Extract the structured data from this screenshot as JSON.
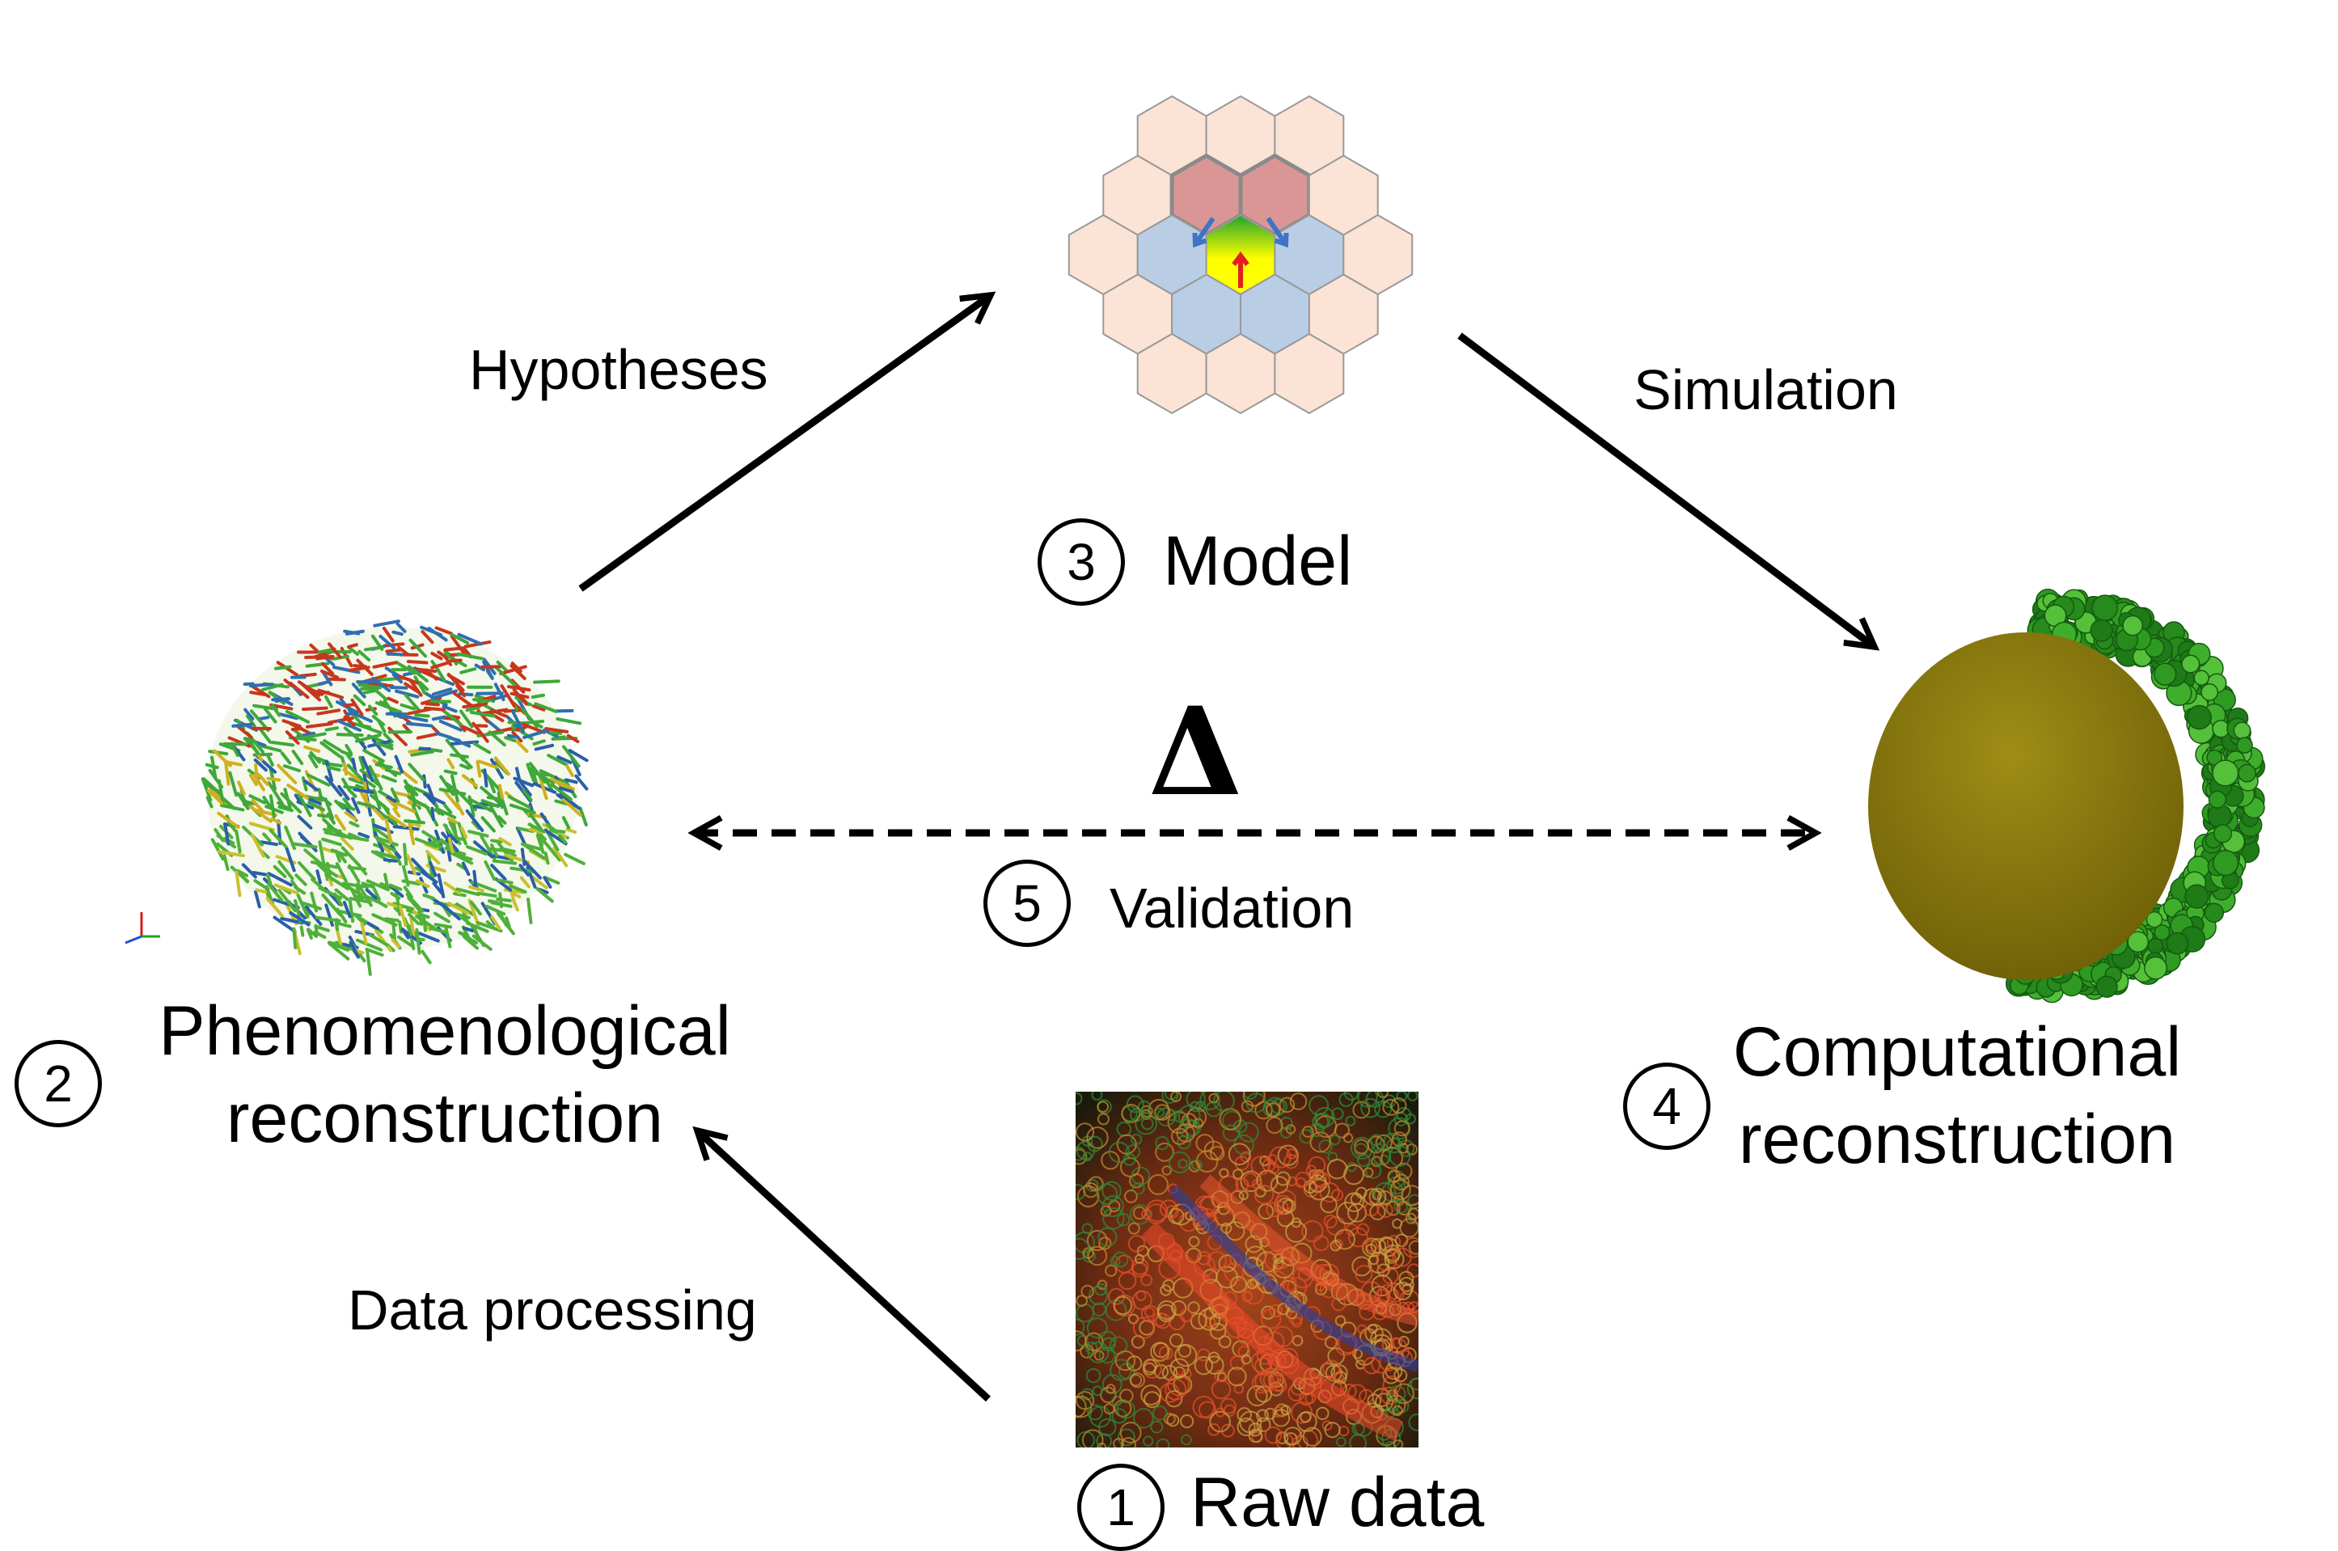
{
  "steps": {
    "raw": {
      "number": "1",
      "label": "Raw data"
    },
    "phen": {
      "number": "2",
      "label_line1": "Phenomenological",
      "label_line2": "reconstruction"
    },
    "model": {
      "number": "3",
      "label": "Model"
    },
    "comp": {
      "number": "4",
      "label_line1": "Computational",
      "label_line2": "reconstruction"
    },
    "valid": {
      "number": "5",
      "label": "Validation"
    }
  },
  "arrows": {
    "data_processing": "Data processing",
    "hypotheses": "Hypotheses",
    "simulation": "Simulation",
    "delta": "Δ"
  },
  "colors": {
    "hex_outer": "#fbe3d5",
    "hex_top": "#d99695",
    "hex_side": "#b9cde5",
    "hex_center_top": "#22a32a",
    "hex_center_bottom": "#ffff00",
    "arrow_red": "#e02020",
    "arrow_blue": "#3f74c4",
    "embryo_yolk": "#8c7a0c",
    "embryo_cells": "#2f8f1f"
  }
}
